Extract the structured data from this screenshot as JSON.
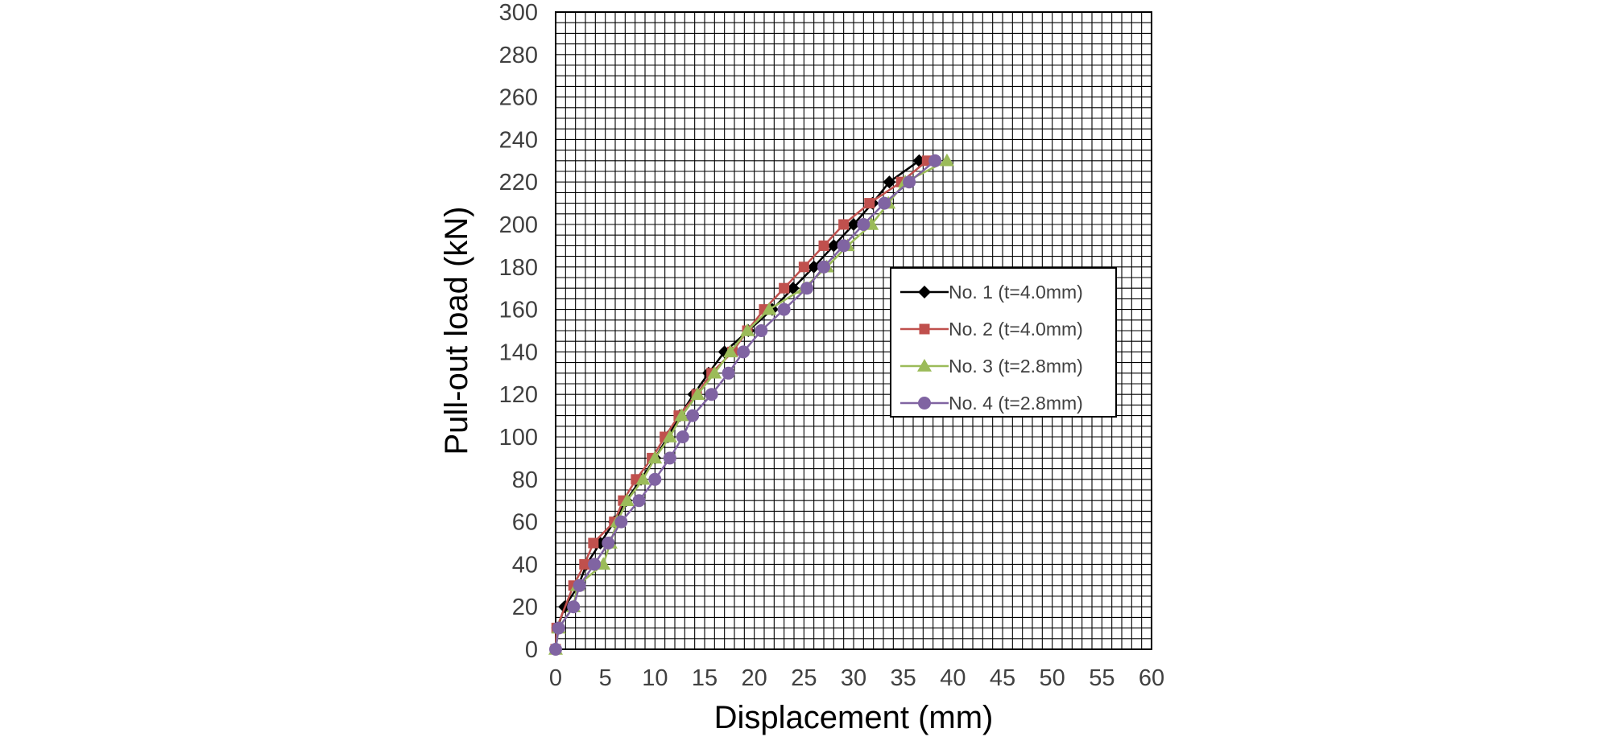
{
  "chart_data": {
    "type": "line",
    "title": "",
    "xlabel": "Displacement (mm)",
    "ylabel": "Pull-out load (kN)",
    "xlim": [
      0,
      60
    ],
    "ylim": [
      0,
      300
    ],
    "x_major_step": 5,
    "y_major_step": 20,
    "x_minor_step": 1,
    "y_minor_step": 5,
    "grid": true,
    "legend_position": "right-middle",
    "x_ticks": [
      "0",
      "5",
      "10",
      "15",
      "20",
      "25",
      "30",
      "35",
      "40",
      "45",
      "50",
      "55",
      "60"
    ],
    "y_ticks": [
      "0",
      "20",
      "40",
      "60",
      "80",
      "100",
      "120",
      "140",
      "160",
      "180",
      "200",
      "220",
      "240",
      "260",
      "280",
      "300"
    ],
    "series": [
      {
        "name": "No. 1 (t=4.0mm)",
        "color": "#000000",
        "marker": "diamond",
        "points": [
          [
            0,
            0
          ],
          [
            0.2,
            10
          ],
          [
            0.9,
            20
          ],
          [
            2.3,
            30
          ],
          [
            3.1,
            40
          ],
          [
            4.5,
            50
          ],
          [
            5.9,
            60
          ],
          [
            7.1,
            70
          ],
          [
            8.6,
            80
          ],
          [
            10.0,
            90
          ],
          [
            11.3,
            100
          ],
          [
            12.5,
            110
          ],
          [
            13.9,
            120
          ],
          [
            15.4,
            130
          ],
          [
            17.0,
            140
          ],
          [
            19.4,
            150
          ],
          [
            21.8,
            160
          ],
          [
            23.9,
            170
          ],
          [
            26.0,
            180
          ],
          [
            28.0,
            190
          ],
          [
            30.0,
            200
          ],
          [
            31.9,
            210
          ],
          [
            33.6,
            220
          ],
          [
            36.6,
            230
          ]
        ]
      },
      {
        "name": "No. 2 (t=4.0mm)",
        "color": "#c0504d",
        "marker": "square",
        "points": [
          [
            0,
            0
          ],
          [
            0.1,
            10
          ],
          [
            1.8,
            30
          ],
          [
            2.9,
            40
          ],
          [
            3.8,
            50
          ],
          [
            5.9,
            60
          ],
          [
            6.8,
            70
          ],
          [
            8.1,
            80
          ],
          [
            9.7,
            90
          ],
          [
            11.0,
            100
          ],
          [
            12.4,
            110
          ],
          [
            14.2,
            120
          ],
          [
            15.7,
            130
          ],
          [
            17.8,
            140
          ],
          [
            19.3,
            150
          ],
          [
            21.0,
            160
          ],
          [
            23.0,
            170
          ],
          [
            25.0,
            180
          ],
          [
            27.0,
            190
          ],
          [
            29.0,
            200
          ],
          [
            31.6,
            210
          ],
          [
            34.8,
            220
          ],
          [
            37.4,
            230
          ]
        ]
      },
      {
        "name": "No. 3 (t=2.8mm)",
        "color": "#9bbb59",
        "marker": "triangle",
        "points": [
          [
            0,
            0
          ],
          [
            0.3,
            10
          ],
          [
            1.8,
            20
          ],
          [
            2.2,
            30
          ],
          [
            4.8,
            40
          ],
          [
            5.5,
            50
          ],
          [
            6.2,
            60
          ],
          [
            7.2,
            70
          ],
          [
            8.8,
            80
          ],
          [
            10.0,
            90
          ],
          [
            11.5,
            100
          ],
          [
            12.7,
            110
          ],
          [
            14.3,
            120
          ],
          [
            16.0,
            130
          ],
          [
            17.6,
            140
          ],
          [
            19.3,
            150
          ],
          [
            21.5,
            160
          ],
          [
            25.0,
            170
          ],
          [
            27.3,
            180
          ],
          [
            29.4,
            190
          ],
          [
            31.8,
            200
          ],
          [
            33.5,
            210
          ],
          [
            35.2,
            220
          ],
          [
            39.4,
            230
          ]
        ]
      },
      {
        "name": "No. 4 (t=2.8mm)",
        "color": "#8064a2",
        "marker": "circle",
        "points": [
          [
            0,
            0
          ],
          [
            0.3,
            10
          ],
          [
            1.8,
            20
          ],
          [
            2.4,
            30
          ],
          [
            3.9,
            40
          ],
          [
            5.3,
            50
          ],
          [
            6.6,
            60
          ],
          [
            8.4,
            70
          ],
          [
            10.0,
            80
          ],
          [
            11.5,
            90
          ],
          [
            12.8,
            100
          ],
          [
            13.8,
            110
          ],
          [
            15.7,
            120
          ],
          [
            17.4,
            130
          ],
          [
            18.9,
            140
          ],
          [
            20.7,
            150
          ],
          [
            23.0,
            160
          ],
          [
            25.3,
            170
          ],
          [
            27.0,
            180
          ],
          [
            29.0,
            190
          ],
          [
            31.0,
            200
          ],
          [
            33.1,
            210
          ],
          [
            35.6,
            220
          ],
          [
            38.2,
            230
          ]
        ]
      }
    ]
  }
}
